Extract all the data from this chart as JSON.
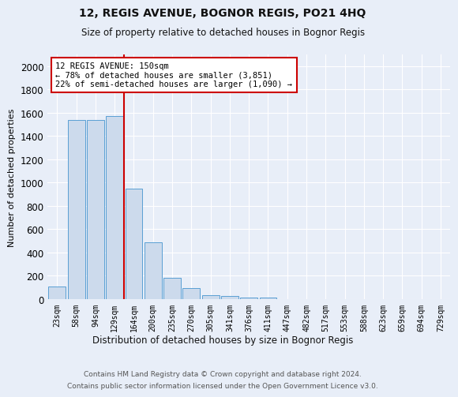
{
  "title": "12, REGIS AVENUE, BOGNOR REGIS, PO21 4HQ",
  "subtitle": "Size of property relative to detached houses in Bognor Regis",
  "xlabel": "Distribution of detached houses by size in Bognor Regis",
  "ylabel": "Number of detached properties",
  "categories": [
    "23sqm",
    "58sqm",
    "94sqm",
    "129sqm",
    "164sqm",
    "200sqm",
    "235sqm",
    "270sqm",
    "305sqm",
    "341sqm",
    "376sqm",
    "411sqm",
    "447sqm",
    "482sqm",
    "517sqm",
    "553sqm",
    "588sqm",
    "623sqm",
    "659sqm",
    "694sqm",
    "729sqm"
  ],
  "values": [
    110,
    1540,
    1540,
    1570,
    950,
    490,
    180,
    95,
    35,
    25,
    15,
    15,
    0,
    0,
    0,
    0,
    0,
    0,
    0,
    0,
    0
  ],
  "bar_color": "#ccdaec",
  "bar_edge_color": "#5a9fd4",
  "annotation_text": "12 REGIS AVENUE: 150sqm\n← 78% of detached houses are smaller (3,851)\n22% of semi-detached houses are larger (1,090) →",
  "annotation_box_color": "#ffffff",
  "annotation_box_edge": "#cc0000",
  "red_line_color": "#cc0000",
  "ylim": [
    0,
    2100
  ],
  "yticks": [
    0,
    200,
    400,
    600,
    800,
    1000,
    1200,
    1400,
    1600,
    1800,
    2000
  ],
  "footer_line1": "Contains HM Land Registry data © Crown copyright and database right 2024.",
  "footer_line2": "Contains public sector information licensed under the Open Government Licence v3.0.",
  "bg_color": "#e8eef8",
  "plot_bg_color": "#e8eef8"
}
